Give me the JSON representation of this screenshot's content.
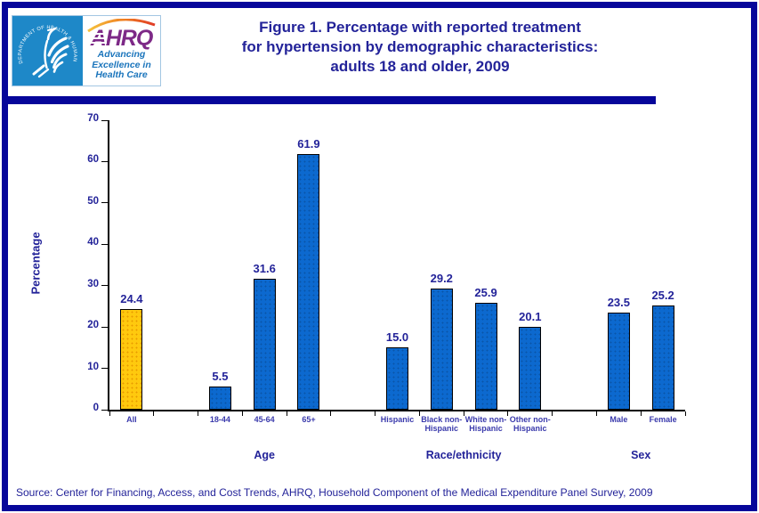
{
  "header": {
    "logo": {
      "seal_text": "DEPARTMENT OF HEALTH & HUMAN SERVICES • USA",
      "acronym": "AHRQ",
      "tagline_lines": [
        "Advancing",
        "Excellence in",
        "Health Care"
      ]
    },
    "title_lines": [
      "Figure 1. Percentage with reported treatment",
      "for hypertension by demographic characteristics:",
      "adults 18 and older, 2009"
    ]
  },
  "chart_data": {
    "type": "bar",
    "title": "Figure 1. Percentage with reported treatment for hypertension by demographic characteristics: adults 18 and older, 2009",
    "xlabel": "",
    "ylabel": "Percentage",
    "ylim": [
      0,
      70
    ],
    "yticks": [
      0,
      10,
      20,
      30,
      40,
      50,
      60,
      70
    ],
    "grid": false,
    "legend": false,
    "num_slots": 13,
    "categories": [
      "All",
      "18-44",
      "45-64",
      "65+",
      "Hispanic",
      "Black non-Hispanic",
      "White non-Hispanic",
      "Other non-Hispanic",
      "Male",
      "Female"
    ],
    "values": [
      24.4,
      5.5,
      31.6,
      61.9,
      15.0,
      29.2,
      25.9,
      20.1,
      23.5,
      25.2
    ],
    "bars": [
      {
        "id": "all",
        "label_lines": [
          "All"
        ],
        "value": 24.4,
        "slot": 0,
        "fill": "#FFC90E",
        "dot": "#E89B00"
      },
      {
        "id": "18-44",
        "label_lines": [
          "18-44"
        ],
        "value": 5.5,
        "slot": 2,
        "fill": "#0C69CF",
        "dot": "#0A55A8"
      },
      {
        "id": "45-64",
        "label_lines": [
          "45-64"
        ],
        "value": 31.6,
        "slot": 3,
        "fill": "#0C69CF",
        "dot": "#0A55A8"
      },
      {
        "id": "65plus",
        "label_lines": [
          "65+"
        ],
        "value": 61.9,
        "slot": 4,
        "fill": "#0C69CF",
        "dot": "#0A55A8"
      },
      {
        "id": "hispanic",
        "label_lines": [
          "Hispanic"
        ],
        "value": 15.0,
        "slot": 6,
        "fill": "#0C69CF",
        "dot": "#0A55A8"
      },
      {
        "id": "black-non-hispanic",
        "label_lines": [
          "Black non-",
          "Hispanic"
        ],
        "value": 29.2,
        "slot": 7,
        "fill": "#0C69CF",
        "dot": "#0A55A8"
      },
      {
        "id": "white-non-hispanic",
        "label_lines": [
          "White non-",
          "Hispanic"
        ],
        "value": 25.9,
        "slot": 8,
        "fill": "#0C69CF",
        "dot": "#0A55A8"
      },
      {
        "id": "other-non-hispanic",
        "label_lines": [
          "Other non-",
          "Hispanic"
        ],
        "value": 20.1,
        "slot": 9,
        "fill": "#0C69CF",
        "dot": "#0A55A8"
      },
      {
        "id": "male",
        "label_lines": [
          "Male"
        ],
        "value": 23.5,
        "slot": 11,
        "fill": "#0C69CF",
        "dot": "#0A55A8"
      },
      {
        "id": "female",
        "label_lines": [
          "Female"
        ],
        "value": 25.2,
        "slot": 12,
        "fill": "#0C69CF",
        "dot": "#0A55A8"
      }
    ],
    "groups": [
      {
        "label": "Age",
        "slot_start": 2,
        "slot_end": 4
      },
      {
        "label": "Race/ethnicity",
        "slot_start": 6,
        "slot_end": 9
      },
      {
        "label": "Sex",
        "slot_start": 11,
        "slot_end": 12
      }
    ]
  },
  "source": "Source: Center for Financing, Access, and Cost Trends, AHRQ, Household Component of the Medical Expenditure Panel Survey, 2009",
  "colors": {
    "frame_navy": "#06069A",
    "title_navy": "#232399",
    "tick_label_navy": "#3A3AAC",
    "axis_black": "#000000",
    "bar_blue": "#0C69CF",
    "bar_gold": "#FFC90E",
    "seal_blue": "#1E88C8",
    "ahrq_purple": "#7D2987",
    "tagline_blue": "#1B75BC"
  }
}
